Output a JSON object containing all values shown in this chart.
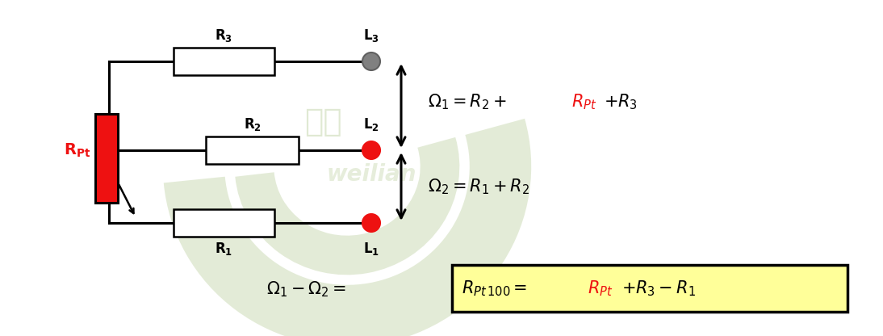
{
  "bg_color": "#ffffff",
  "red_color": "#ee1111",
  "black_color": "#000000",
  "gray_color": "#808080",
  "yellow_bg": "#ffff99",
  "wm_color": "#c8d8b0",
  "fig_width": 10.94,
  "fig_height": 4.16,
  "dpi": 100
}
